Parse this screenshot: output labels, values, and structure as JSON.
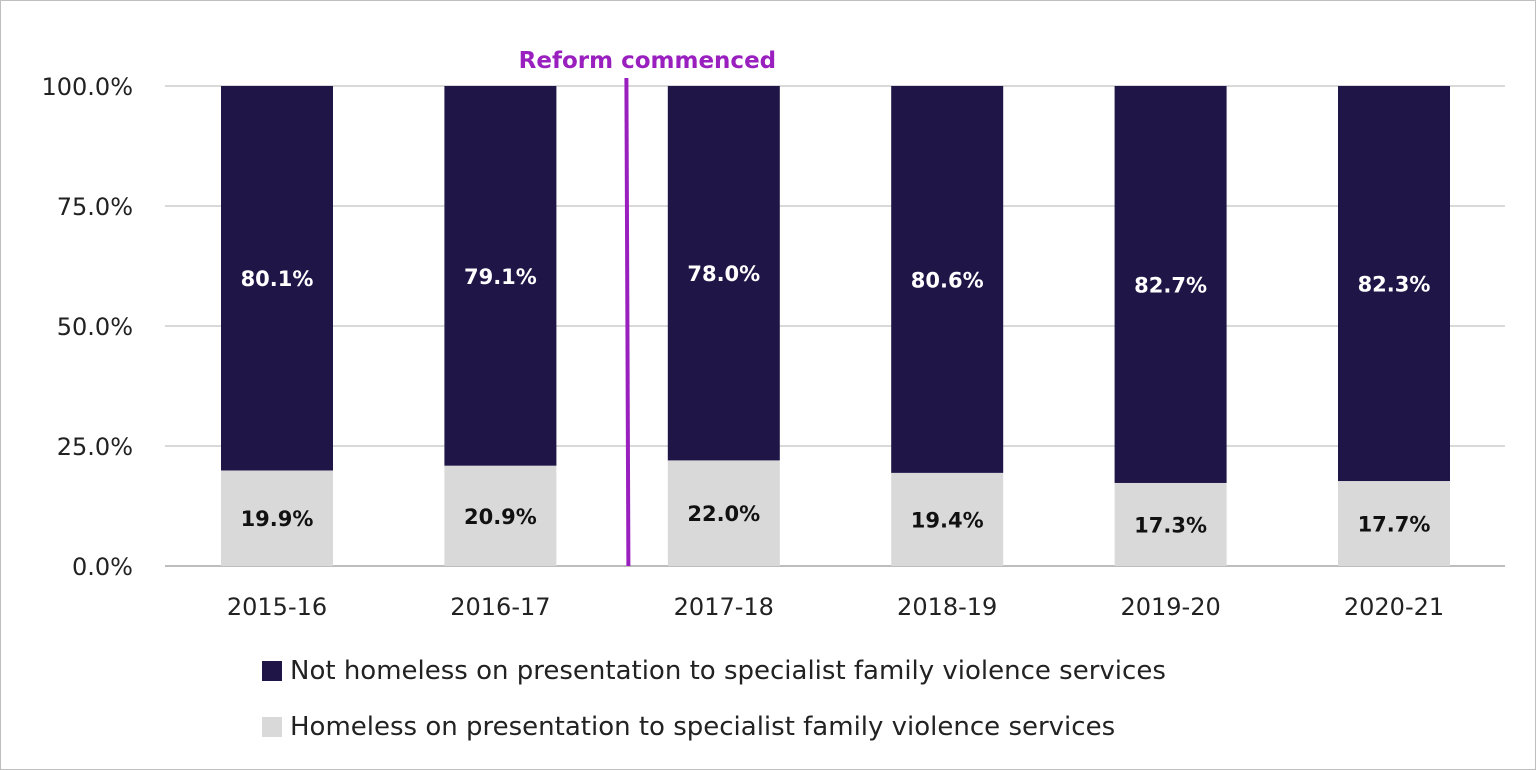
{
  "chart_data": {
    "type": "bar",
    "stacked": true,
    "categories": [
      "2015-16",
      "2016-17",
      "2017-18",
      "2018-19",
      "2019-20",
      "2020-21"
    ],
    "series": [
      {
        "name": "Homeless on presentation to specialist family violence services",
        "values": [
          19.9,
          20.9,
          22.0,
          19.4,
          17.3,
          17.7
        ],
        "color": "#d9d9d9",
        "label_color": "#111111"
      },
      {
        "name": "Not homeless on presentation to specialist family violence services",
        "values": [
          80.1,
          79.1,
          78.0,
          80.6,
          82.7,
          82.3
        ],
        "color": "#201547",
        "label_color": "#ffffff"
      }
    ],
    "ylim": [
      0,
      100
    ],
    "yticks": [
      "0.0%",
      "25.0%",
      "50.0%",
      "75.0%",
      "100.0%"
    ],
    "grid": true,
    "legend_placement": "bottom",
    "annotation": {
      "text": "Reform commenced",
      "between": [
        "2016-17",
        "2017-18"
      ],
      "color": "#9a1fbf"
    }
  }
}
